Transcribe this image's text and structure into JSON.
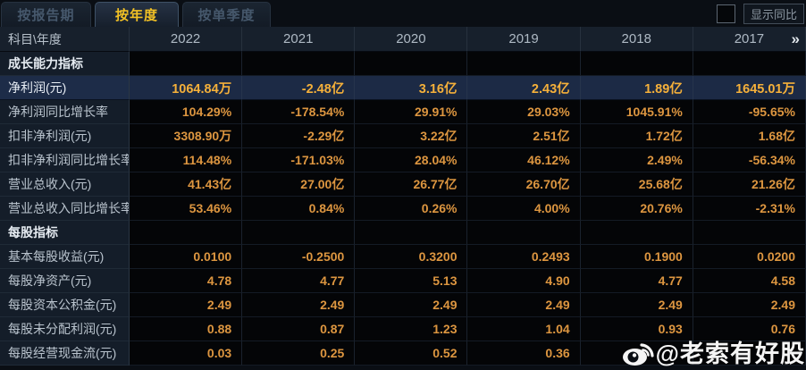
{
  "tabs": [
    {
      "label": "按报告期",
      "active": false
    },
    {
      "label": "按年度",
      "active": true
    },
    {
      "label": "按单季度",
      "active": false
    }
  ],
  "controls": {
    "compare_toggle_label": "显示同比",
    "checkbox_checked": false
  },
  "table": {
    "corner_label": "科目\\年度",
    "years": [
      "2022",
      "2021",
      "2020",
      "2019",
      "2018",
      "2017"
    ],
    "more_icon": "»",
    "rows": [
      {
        "type": "section",
        "label": "成长能力指标",
        "values": [
          "",
          "",
          "",
          "",
          "",
          ""
        ]
      },
      {
        "type": "data",
        "highlight": true,
        "label": "净利润(元)",
        "values": [
          "1064.84万",
          "-2.48亿",
          "3.16亿",
          "2.43亿",
          "1.89亿",
          "1645.01万"
        ]
      },
      {
        "type": "data",
        "label": "净利润同比增长率",
        "values": [
          "104.29%",
          "-178.54%",
          "29.91%",
          "29.03%",
          "1045.91%",
          "-95.65%"
        ]
      },
      {
        "type": "data",
        "label": "扣非净利润(元)",
        "values": [
          "3308.90万",
          "-2.29亿",
          "3.22亿",
          "2.51亿",
          "1.72亿",
          "1.68亿"
        ]
      },
      {
        "type": "data",
        "label": "扣非净利润同比增长率",
        "values": [
          "114.48%",
          "-171.03%",
          "28.04%",
          "46.12%",
          "2.49%",
          "-56.34%"
        ]
      },
      {
        "type": "data",
        "label": "营业总收入(元)",
        "values": [
          "41.43亿",
          "27.00亿",
          "26.77亿",
          "26.70亿",
          "25.68亿",
          "21.26亿"
        ]
      },
      {
        "type": "data",
        "label": "营业总收入同比增长率",
        "values": [
          "53.46%",
          "0.84%",
          "0.26%",
          "4.00%",
          "20.76%",
          "-2.31%"
        ]
      },
      {
        "type": "section",
        "label": "每股指标",
        "values": [
          "",
          "",
          "",
          "",
          "",
          ""
        ]
      },
      {
        "type": "data",
        "label": "基本每股收益(元)",
        "values": [
          "0.0100",
          "-0.2500",
          "0.3200",
          "0.2493",
          "0.1900",
          "0.0200"
        ]
      },
      {
        "type": "data",
        "label": "每股净资产(元)",
        "values": [
          "4.78",
          "4.77",
          "5.13",
          "4.90",
          "4.77",
          "4.58"
        ]
      },
      {
        "type": "data",
        "label": "每股资本公积金(元)",
        "values": [
          "2.49",
          "2.49",
          "2.49",
          "2.49",
          "2.49",
          "2.49"
        ]
      },
      {
        "type": "data",
        "label": "每股未分配利润(元)",
        "values": [
          "0.88",
          "0.87",
          "1.23",
          "1.04",
          "0.93",
          "0.76"
        ]
      },
      {
        "type": "data",
        "label": "每股经营现金流(元)",
        "values": [
          "0.03",
          "0.25",
          "0.52",
          "0.36",
          "",
          ""
        ]
      }
    ]
  },
  "watermark": {
    "text": "@老索有好股",
    "icon": "weibo-icon"
  },
  "colors": {
    "background": "#0a0e14",
    "cell_bg": "#040507",
    "label_col_bg": "#141d29",
    "highlight_row_bg": "#1c2a45",
    "value_orange": "#dd9640",
    "highlight_value_gold": "#f5b03a",
    "active_tab_text": "#f2c125",
    "inactive_tab_text": "#46586c",
    "header_text": "#aeb9c4",
    "watermark_white": "#ffffff"
  }
}
